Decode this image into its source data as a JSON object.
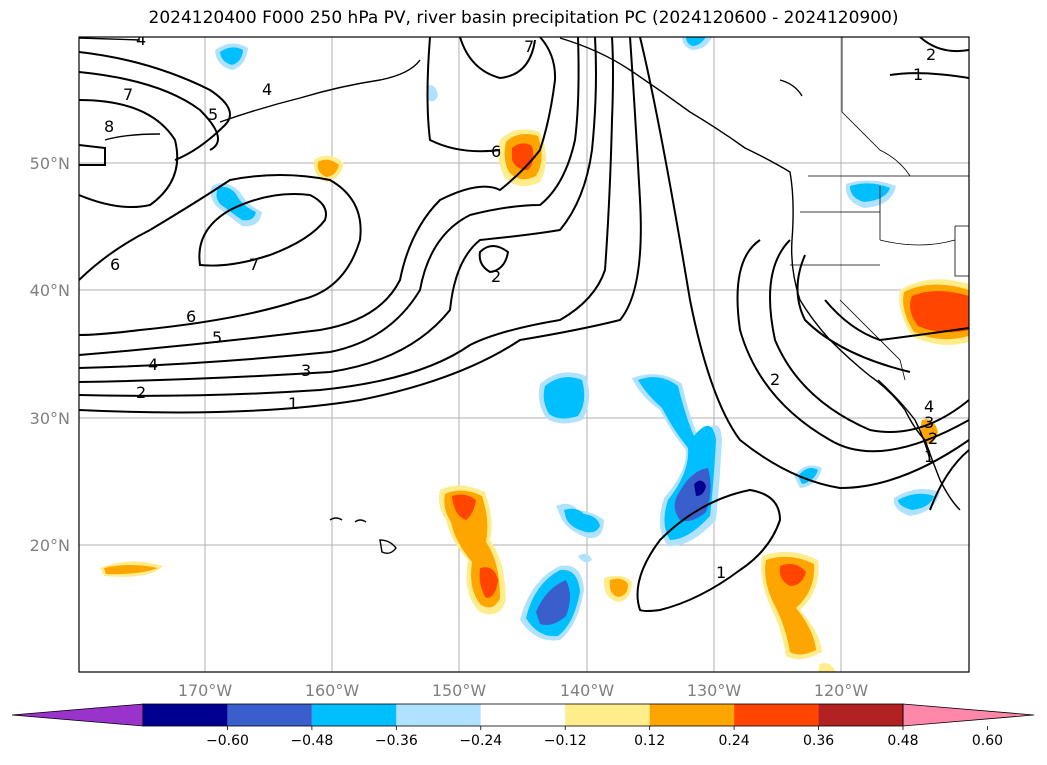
{
  "title": "2024120400 F000 250 hPa PV, river basin precipitation PC (2024120600 - 2024120900)",
  "map": {
    "lat_labels": [
      "50°N",
      "40°N",
      "30°N",
      "20°N"
    ],
    "lon_labels": [
      "170°W",
      "160°W",
      "150°W",
      "140°W",
      "130°W",
      "120°W"
    ]
  },
  "pv_contour_labels": [
    {
      "id": "a",
      "text": "4"
    },
    {
      "id": "b",
      "text": "7"
    },
    {
      "id": "c",
      "text": "8"
    },
    {
      "id": "d",
      "text": "5"
    },
    {
      "id": "e",
      "text": "4"
    },
    {
      "id": "f",
      "text": "7"
    },
    {
      "id": "g",
      "text": "6"
    },
    {
      "id": "h",
      "text": "6"
    },
    {
      "id": "i",
      "text": "7"
    },
    {
      "id": "j",
      "text": "2"
    },
    {
      "id": "k",
      "text": "6"
    },
    {
      "id": "l",
      "text": "5"
    },
    {
      "id": "m",
      "text": "4"
    },
    {
      "id": "n",
      "text": "3"
    },
    {
      "id": "o",
      "text": "2"
    },
    {
      "id": "p",
      "text": "1"
    },
    {
      "id": "q",
      "text": "2"
    },
    {
      "id": "r",
      "text": "1"
    },
    {
      "id": "s",
      "text": "2"
    },
    {
      "id": "t",
      "text": "1"
    },
    {
      "id": "u",
      "text": "4"
    },
    {
      "id": "v",
      "text": "3"
    },
    {
      "id": "w",
      "text": "2"
    },
    {
      "id": "x",
      "text": "1"
    }
  ],
  "colorbar": {
    "colors": [
      "#9933cc",
      "#000090",
      "#3a5fcd",
      "#00bfff",
      "#b0e2ff",
      "#ffffff",
      "#ffec8b",
      "#ffa500",
      "#ff4500",
      "#b22222",
      "#ff88aa"
    ],
    "ticks": [
      "−0.60",
      "−0.48",
      "−0.36",
      "−0.24",
      "−0.12",
      "0.12",
      "0.24",
      "0.36",
      "0.48",
      "0.60"
    ]
  }
}
